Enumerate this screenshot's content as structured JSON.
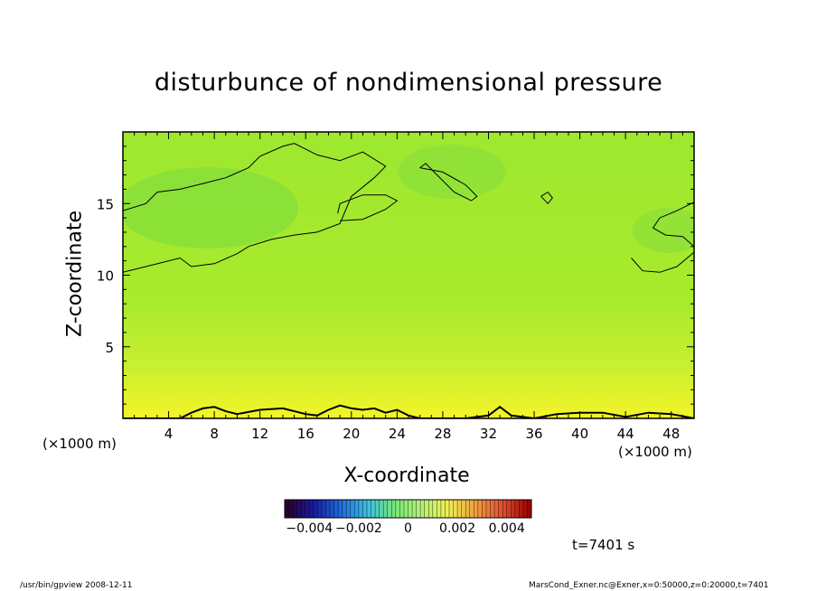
{
  "chart_data": {
    "type": "contour",
    "title": "disturbunce of nondimensional pressure",
    "xlabel": "X-coordinate",
    "ylabel": "Z-coordinate",
    "x_unit_label": "(×1000 m)",
    "xlim": [
      0,
      50
    ],
    "ylim": [
      0,
      20
    ],
    "x_ticks": [
      4,
      8,
      12,
      16,
      20,
      24,
      28,
      32,
      36,
      40,
      44,
      48
    ],
    "y_ticks": [
      5,
      10,
      15
    ],
    "colorbar": {
      "range": [
        -0.005,
        0.005
      ],
      "tick_labels": [
        "−0.004",
        "−0.002",
        "0",
        "0.002",
        "0.004"
      ],
      "tick_values": [
        -0.004,
        -0.002,
        0,
        0.002,
        0.004
      ],
      "colors": [
        "#2a0030",
        "#1a1a9a",
        "#1e6be0",
        "#3cc0e0",
        "#78e878",
        "#b8f078",
        "#f0f050",
        "#f0a040",
        "#e05030",
        "#a00000"
      ]
    },
    "field_colors": {
      "background": "#9ee830",
      "lower_band": "#c8f030",
      "surface": "#f4f428",
      "upper_patch": "#7edc40"
    },
    "zero_contours": [
      {
        "name": "upper-left",
        "x": [
          0,
          2,
          5,
          6,
          8,
          10,
          11,
          13,
          15,
          17,
          19,
          20,
          22,
          23,
          21,
          19,
          17,
          15,
          14,
          12,
          11,
          9,
          7,
          5,
          3,
          2,
          0
        ],
        "z": [
          10.2,
          10.6,
          11.2,
          10.6,
          10.8,
          11.5,
          12.0,
          12.5,
          12.8,
          13.0,
          13.6,
          15.5,
          16.8,
          17.6,
          18.6,
          18.0,
          18.4,
          19.2,
          19.0,
          18.3,
          17.5,
          16.8,
          16.4,
          16.0,
          15.8,
          15.0,
          14.5
        ]
      },
      {
        "name": "mid-blob",
        "x": [
          19,
          21,
          23,
          24,
          23,
          21,
          19,
          18.8
        ],
        "z": [
          13.8,
          13.9,
          14.6,
          15.2,
          15.6,
          15.6,
          15.0,
          14.3
        ]
      },
      {
        "name": "top-blob",
        "x": [
          26,
          28,
          30,
          31,
          30.5,
          29,
          27.5,
          26.5,
          26
        ],
        "z": [
          17.5,
          17.2,
          16.3,
          15.5,
          15.2,
          15.8,
          17.0,
          17.8,
          17.5
        ]
      },
      {
        "name": "right-small",
        "x": [
          36.6,
          37.2,
          37.6,
          37.2,
          36.6
        ],
        "z": [
          15.5,
          15.8,
          15.4,
          15.0,
          15.5
        ]
      },
      {
        "name": "right-edge",
        "x": [
          50,
          48.5,
          47,
          46.4,
          47.5,
          49,
          50
        ],
        "z": [
          15.1,
          14.5,
          14.0,
          13.3,
          12.8,
          12.7,
          12.0
        ]
      },
      {
        "name": "right-lower",
        "x": [
          44.5,
          45.5,
          47,
          48.5,
          50
        ],
        "z": [
          11.2,
          10.3,
          10.2,
          10.6,
          11.6
        ]
      },
      {
        "name": "surface",
        "x": [
          0,
          5,
          6,
          7,
          8,
          9,
          10,
          12,
          14,
          16,
          17,
          18,
          19,
          20,
          21,
          22,
          23,
          24,
          25,
          26,
          28,
          30,
          32,
          33,
          34,
          36,
          38,
          40,
          42,
          44,
          46,
          48,
          50
        ],
        "z": [
          0,
          0,
          0.4,
          0.7,
          0.8,
          0.5,
          0.3,
          0.6,
          0.7,
          0.3,
          0.2,
          0.6,
          0.9,
          0.7,
          0.6,
          0.7,
          0.4,
          0.6,
          0.2,
          0,
          0,
          0,
          0.2,
          0.8,
          0.2,
          0,
          0.3,
          0.4,
          0.4,
          0.1,
          0.4,
          0.3,
          0
        ]
      }
    ]
  },
  "labels": {
    "title": "disturbunce of nondimensional pressure",
    "xlabel": "X-coordinate",
    "ylabel": "Z-coordinate",
    "xunit_left": "(×1000 m)",
    "xunit_right": "(×1000 m)",
    "time": "t=7401 s",
    "footer_left": "/usr/bin/gpview   2008-12-11",
    "footer_right": "MarsCond_Exner.nc@Exner,x=0:50000,z=0:20000,t=7401"
  }
}
